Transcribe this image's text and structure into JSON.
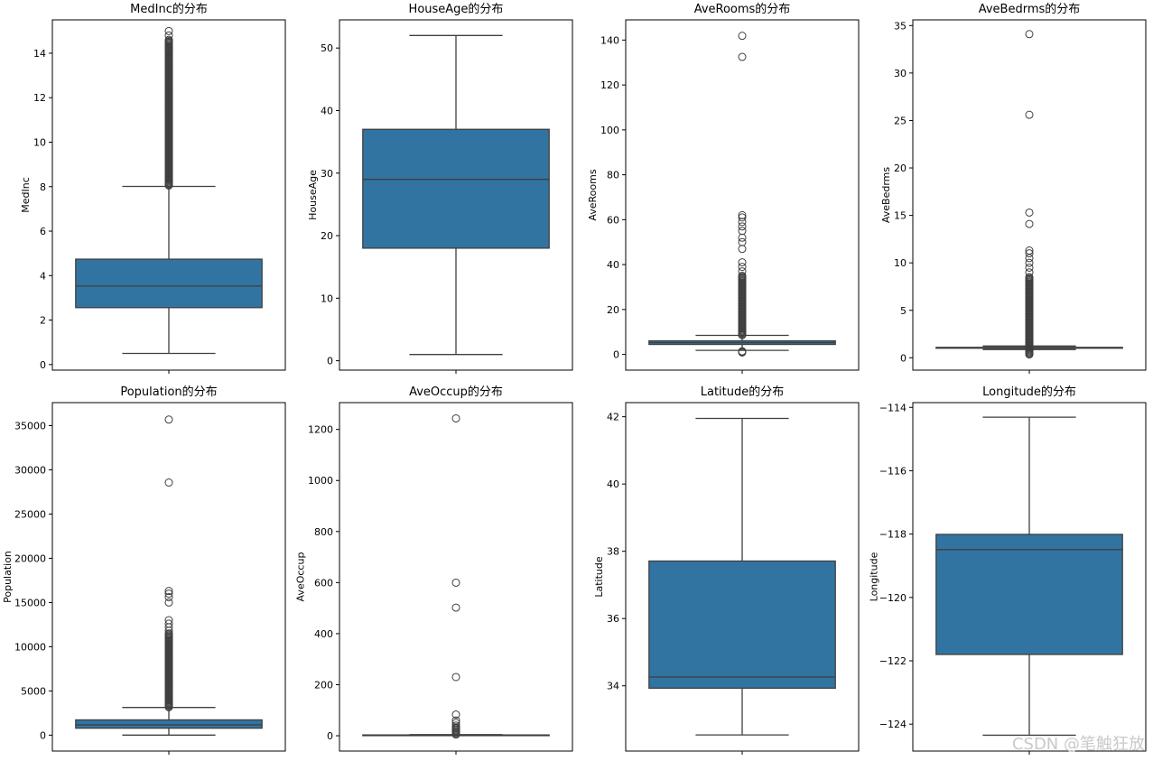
{
  "chart_data": [
    {
      "type": "box",
      "title": "MedInc的分布",
      "ylabel": "MedInc",
      "ylim": [
        -0.25,
        15.5
      ],
      "yticks": [
        0,
        2,
        4,
        6,
        8,
        10,
        12,
        14
      ],
      "box": {
        "whislo": 0.5,
        "q1": 2.56,
        "median": 3.53,
        "q3": 4.74,
        "whishi": 8.01
      },
      "fliers_dense": [
        8.05,
        14.6
      ],
      "fliers": [
        8.1,
        8.3,
        8.6,
        9.0,
        9.5,
        10.0,
        10.5,
        11.0,
        11.5,
        12.0,
        12.5,
        13.0,
        13.5,
        13.8,
        14.2,
        14.5,
        14.8,
        15.0
      ]
    },
    {
      "type": "box",
      "title": "HouseAge的分布",
      "ylabel": "HouseAge",
      "ylim": [
        -1.5,
        54.5
      ],
      "yticks": [
        0,
        10,
        20,
        30,
        40,
        50
      ],
      "box": {
        "whislo": 1,
        "q1": 18,
        "median": 29,
        "q3": 37,
        "whishi": 52
      },
      "fliers_dense": null,
      "fliers": []
    },
    {
      "type": "box",
      "title": "AveRooms的分布",
      "ylabel": "AveRooms",
      "ylim": [
        -7,
        149
      ],
      "yticks": [
        0,
        20,
        40,
        60,
        80,
        100,
        120,
        140
      ],
      "box": {
        "whislo": 1.8,
        "q1": 4.44,
        "median": 5.23,
        "q3": 6.05,
        "whishi": 8.47
      },
      "fliers_dense": [
        8.6,
        35
      ],
      "fliers": [
        0.85,
        1.1,
        1.4,
        37,
        39,
        41,
        47,
        50,
        52,
        55,
        57,
        59,
        61,
        62,
        132.5,
        141.9
      ]
    },
    {
      "type": "box",
      "title": "AveBedrms的分布",
      "ylabel": "AveBedrms",
      "ylim": [
        -1.3,
        35.6
      ],
      "yticks": [
        0,
        5,
        10,
        15,
        20,
        25,
        30,
        35
      ],
      "box": {
        "whislo": 0.87,
        "q1": 1.006,
        "median": 1.049,
        "q3": 1.1,
        "whishi": 1.24
      },
      "fliers_dense": [
        0.35,
        8.5
      ],
      "fliers": [
        9.0,
        9.5,
        10.0,
        10.5,
        11.0,
        11.3,
        14.1,
        15.3,
        25.6,
        34.1
      ]
    },
    {
      "type": "box",
      "title": "Population的分布",
      "ylabel": "Population",
      "ylim": [
        -1800,
        37600
      ],
      "yticks": [
        0,
        5000,
        10000,
        15000,
        20000,
        25000,
        30000,
        35000
      ],
      "box": {
        "whislo": 3,
        "q1": 787,
        "median": 1166,
        "q3": 1725,
        "whishi": 3132
      },
      "fliers_dense": [
        3150,
        11500
      ],
      "fliers": [
        11800,
        12200,
        12600,
        13000,
        15000,
        15600,
        16000,
        16300,
        28566,
        35682
      ]
    },
    {
      "type": "box",
      "title": "AveOccup的分布",
      "ylabel": "AveOccup",
      "ylim": [
        -60,
        1305
      ],
      "yticks": [
        0,
        200,
        400,
        600,
        800,
        1000,
        1200
      ],
      "box": {
        "whislo": 0.69,
        "q1": 2.43,
        "median": 2.82,
        "q3": 3.28,
        "whishi": 4.56
      },
      "fliers_dense": [
        4.6,
        30
      ],
      "fliers": [
        33,
        40,
        50,
        60,
        83,
        230,
        502,
        599.7,
        1243.3
      ]
    },
    {
      "type": "box",
      "title": "Latitude的分布",
      "ylabel": "Latitude",
      "ylim": [
        32.06,
        42.42
      ],
      "yticks": [
        34,
        36,
        38,
        40,
        42
      ],
      "box": {
        "whislo": 32.54,
        "q1": 33.93,
        "median": 34.26,
        "q3": 37.71,
        "whishi": 41.95
      },
      "fliers_dense": null,
      "fliers": []
    },
    {
      "type": "box",
      "title": "Longitude的分布",
      "ylabel": "Longitude",
      "ylim": [
        -124.85,
        -113.85
      ],
      "yticks": [
        -114,
        -116,
        -118,
        -120,
        -122,
        -124
      ],
      "box": {
        "whislo": -124.35,
        "q1": -121.8,
        "median": -118.49,
        "q3": -118.01,
        "whishi": -114.31
      },
      "fliers_dense": null,
      "fliers": []
    }
  ],
  "watermark": "CSDN @笔触狂放",
  "colors": {
    "box_fill": "#3274a1",
    "line": "#3f3f3f",
    "spine": "#000000"
  }
}
